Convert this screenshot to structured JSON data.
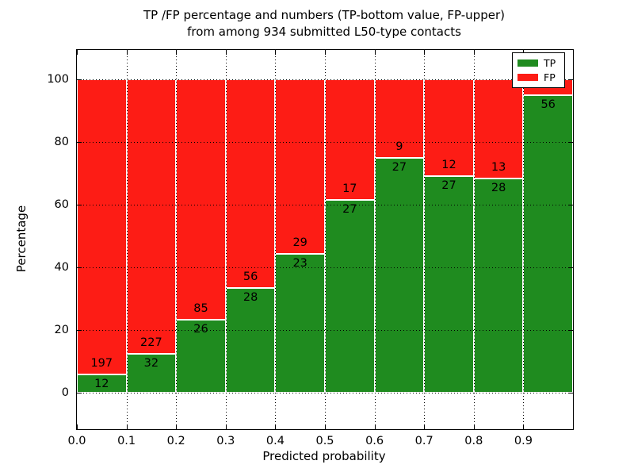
{
  "title": {
    "line1": "TP /FP percentage and numbers (TP-bottom value, FP-upper)",
    "line2": "from among 934 submitted L50-type contacts"
  },
  "axes": {
    "xlabel": "Predicted probability",
    "ylabel": "Percentage",
    "x_tick_labels": [
      "0.0",
      "0.1",
      "0.2",
      "0.3",
      "0.4",
      "0.5",
      "0.6",
      "0.7",
      "0.8",
      "0.9"
    ],
    "y_tick_labels": [
      "0",
      "20",
      "40",
      "60",
      "80",
      "100"
    ],
    "y_tick_values": [
      0,
      20,
      40,
      60,
      80,
      100
    ]
  },
  "legend": {
    "entries": [
      {
        "label": "TP",
        "color": "#1f8b1f"
      },
      {
        "label": "FP",
        "color": "#fd1c15"
      }
    ]
  },
  "colors": {
    "tp": "#1f8b1f",
    "fp": "#fd1c15",
    "grid": "#000000",
    "background": "#ffffff"
  },
  "chart_data": {
    "type": "bar",
    "subtype": "stacked-percentage-histogram",
    "title": "TP /FP percentage and numbers (TP-bottom value, FP-upper) from among 934 submitted L50-type contacts",
    "xlabel": "Predicted probability",
    "ylabel": "Percentage",
    "total_contacts": 934,
    "bin_width": 0.1,
    "x_bin_starts": [
      0.0,
      0.1,
      0.2,
      0.3,
      0.4,
      0.5,
      0.6,
      0.7,
      0.8,
      0.9
    ],
    "grid": true,
    "legend_position": "upper right",
    "series": [
      {
        "name": "TP",
        "counts": [
          12,
          32,
          26,
          28,
          23,
          27,
          27,
          27,
          28,
          56
        ]
      },
      {
        "name": "FP",
        "counts": [
          197,
          227,
          85,
          56,
          29,
          17,
          9,
          12,
          13,
          null
        ]
      }
    ],
    "bars": [
      {
        "x0": 0.0,
        "x1": 0.1,
        "tp_pct": 5.7,
        "tp_label": "12",
        "fp_label": "197"
      },
      {
        "x0": 0.1,
        "x1": 0.2,
        "tp_pct": 12.4,
        "tp_label": "32",
        "fp_label": "227"
      },
      {
        "x0": 0.2,
        "x1": 0.3,
        "tp_pct": 23.4,
        "tp_label": "26",
        "fp_label": "85"
      },
      {
        "x0": 0.3,
        "x1": 0.4,
        "tp_pct": 33.3,
        "tp_label": "28",
        "fp_label": "56"
      },
      {
        "x0": 0.4,
        "x1": 0.5,
        "tp_pct": 44.2,
        "tp_label": "23",
        "fp_label": "29"
      },
      {
        "x0": 0.5,
        "x1": 0.6,
        "tp_pct": 61.4,
        "tp_label": "27",
        "fp_label": "17"
      },
      {
        "x0": 0.6,
        "x1": 0.7,
        "tp_pct": 75.0,
        "tp_label": "27",
        "fp_label": "9"
      },
      {
        "x0": 0.7,
        "x1": 0.8,
        "tp_pct": 69.2,
        "tp_label": "27",
        "fp_label": "12"
      },
      {
        "x0": 0.8,
        "x1": 0.9,
        "tp_pct": 68.3,
        "tp_label": "28",
        "fp_label": "13"
      },
      {
        "x0": 0.9,
        "x1": 1.0,
        "tp_pct": 94.9,
        "tp_label": "56",
        "fp_label": ""
      }
    ],
    "ylim_displayed": [
      -11.6,
      109.4
    ],
    "xlim": [
      0.0,
      1.0
    ]
  }
}
